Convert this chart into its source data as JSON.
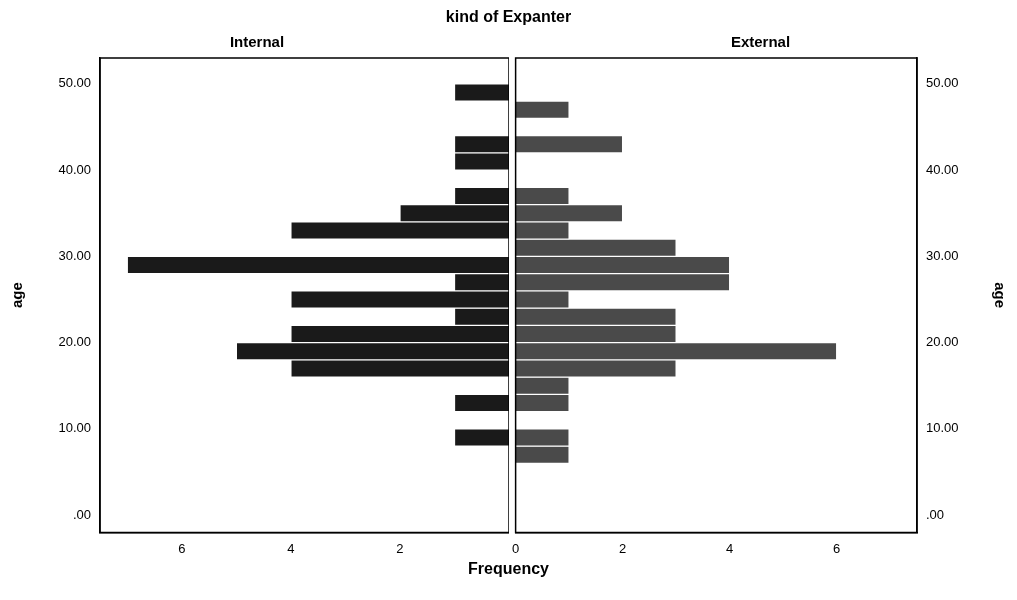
{
  "chart_data": [
    {
      "type": "histogram",
      "orientation": "horizontal",
      "title": "kind of Expanter",
      "subtitle": "Internal",
      "xlabel": "Frequency",
      "ylabel": "age",
      "color": "#1a1a1a",
      "bins": [
        6,
        8,
        10,
        12,
        14,
        16,
        18,
        20,
        22,
        24,
        26,
        28,
        30,
        32,
        34,
        36,
        38,
        40,
        42,
        44,
        46,
        48,
        50
      ],
      "values": [
        0,
        1,
        0,
        1,
        0,
        4,
        5,
        4,
        1,
        4,
        1,
        7,
        0,
        4,
        2,
        1,
        0,
        1,
        1,
        0,
        0,
        1
      ],
      "xlim": [
        7.5,
        0
      ],
      "xticks": [
        {
          "value": 0,
          "label": null
        },
        2,
        4,
        6
      ],
      "ylim": [
        -2,
        53
      ],
      "yticks": [
        {
          "value": 0,
          "label": ".00"
        },
        {
          "value": 10,
          "label": "10.00"
        },
        {
          "value": 20,
          "label": "20.00"
        },
        {
          "value": 30,
          "label": "30.00"
        },
        {
          "value": 40,
          "label": "40.00"
        },
        {
          "value": 50,
          "label": "50.00"
        }
      ]
    },
    {
      "type": "histogram",
      "orientation": "horizontal",
      "subtitle": "External",
      "ylabel": "age",
      "color": "#4a4a4a",
      "bins": [
        6,
        8,
        10,
        12,
        14,
        16,
        18,
        20,
        22,
        24,
        26,
        28,
        30,
        32,
        34,
        36,
        38,
        40,
        42,
        44,
        46,
        48,
        50
      ],
      "values": [
        1,
        1,
        0,
        1,
        1,
        3,
        6,
        3,
        3,
        1,
        4,
        4,
        3,
        1,
        2,
        1,
        0,
        0,
        2,
        0,
        1,
        0
      ],
      "xlim": [
        0,
        7.5
      ],
      "xticks": [
        0,
        2,
        4,
        6
      ],
      "ylim": [
        -2,
        53
      ],
      "yticks": [
        {
          "value": 0,
          "label": ".00"
        },
        {
          "value": 10,
          "label": "10.00"
        },
        {
          "value": 20,
          "label": "20.00"
        },
        {
          "value": 30,
          "label": "30.00"
        },
        {
          "value": 40,
          "label": "40.00"
        },
        {
          "value": 50,
          "label": "50.00"
        }
      ]
    }
  ]
}
